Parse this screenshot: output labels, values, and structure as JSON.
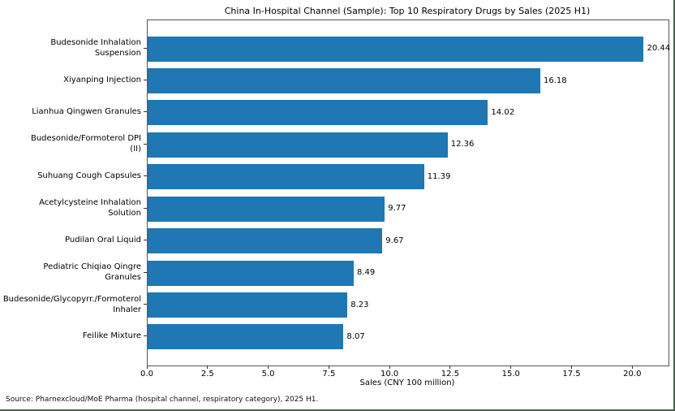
{
  "figure": {
    "source_note": "Source: Pharnexcloud/MoE Pharma (hospital channel, respiratory category), 2025 H1."
  },
  "chart_data": {
    "type": "bar",
    "orientation": "horizontal",
    "title": "China In-Hospital Channel (Sample): Top 10 Respiratory Drugs by Sales (2025 H1)",
    "xlabel": "Sales (CNY 100 million)",
    "ylabel": "",
    "categories": [
      "Budesonide Inhalation\nSuspension",
      "Xiyanping Injection",
      "Lianhua Qingwen Granules",
      "Budesonide/Formoterol DPI\n(II)",
      "Suhuang Cough Capsules",
      "Acetylcysteine Inhalation\nSolution",
      "Pudilan Oral Liquid",
      "Pediatric Chiqiao Qingre\nGranules",
      "Budesonide/Glycopyrr./Formoterol\nInhaler",
      "Feilike Mixture"
    ],
    "values": [
      20.44,
      16.18,
      14.02,
      12.36,
      11.39,
      9.77,
      9.67,
      8.49,
      8.23,
      8.07
    ],
    "value_labels": [
      "20.44",
      "16.18",
      "14.02",
      "12.36",
      "11.39",
      "9.77",
      "9.67",
      "8.49",
      "8.23",
      "8.07"
    ],
    "xlim": [
      0,
      21.46
    ],
    "xticks": [
      0.0,
      2.5,
      5.0,
      7.5,
      10.0,
      12.5,
      15.0,
      17.5,
      20.0
    ],
    "xtick_labels": [
      "0.0",
      "2.5",
      "5.0",
      "7.5",
      "10.0",
      "12.5",
      "15.0",
      "17.5",
      "20.0"
    ],
    "bar_color": "#1f77b4",
    "grid": false,
    "legend": null
  }
}
